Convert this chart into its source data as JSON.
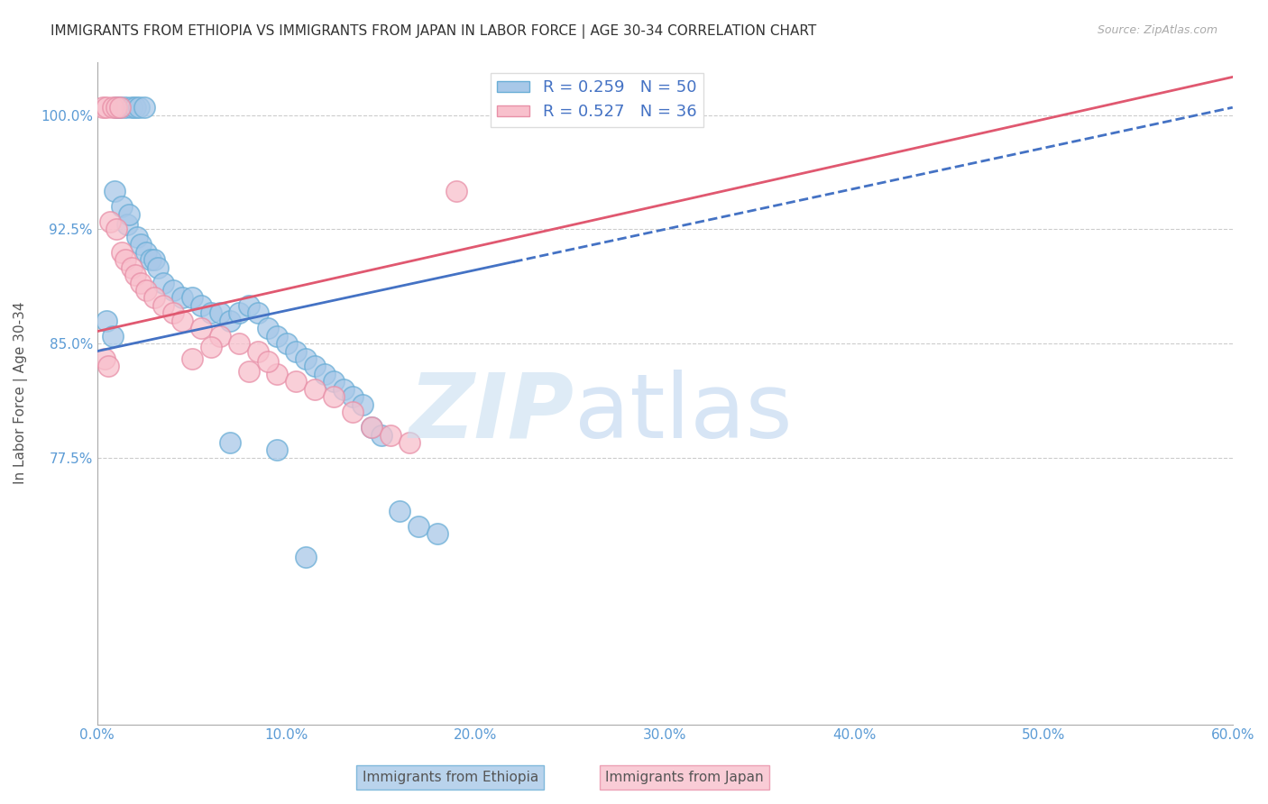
{
  "title": "IMMIGRANTS FROM ETHIOPIA VS IMMIGRANTS FROM JAPAN IN LABOR FORCE | AGE 30-34 CORRELATION CHART",
  "source": "Source: ZipAtlas.com",
  "ylabel": "In Labor Force | Age 30-34",
  "x_tick_labels": [
    "0.0%",
    "10.0%",
    "20.0%",
    "30.0%",
    "40.0%",
    "50.0%",
    "60.0%"
  ],
  "x_tick_values": [
    0.0,
    10.0,
    20.0,
    30.0,
    40.0,
    50.0,
    60.0
  ],
  "y_tick_labels": [
    "77.5%",
    "85.0%",
    "92.5%",
    "100.0%"
  ],
  "y_tick_values": [
    77.5,
    85.0,
    92.5,
    100.0
  ],
  "xlim": [
    0.0,
    60.0
  ],
  "ylim": [
    60.0,
    103.5
  ],
  "ethiopia_scatter": [
    [
      0.5,
      86.5
    ],
    [
      0.8,
      85.5
    ],
    [
      1.0,
      100.5
    ],
    [
      1.1,
      100.5
    ],
    [
      1.2,
      100.5
    ],
    [
      1.5,
      100.5
    ],
    [
      1.8,
      100.5
    ],
    [
      2.0,
      100.5
    ],
    [
      2.2,
      100.5
    ],
    [
      2.5,
      100.5
    ],
    [
      0.9,
      95.0
    ],
    [
      1.3,
      94.0
    ],
    [
      1.6,
      92.8
    ],
    [
      1.7,
      93.5
    ],
    [
      2.1,
      92.0
    ],
    [
      2.3,
      91.5
    ],
    [
      2.6,
      91.0
    ],
    [
      2.8,
      90.5
    ],
    [
      3.0,
      90.5
    ],
    [
      3.2,
      90.0
    ],
    [
      3.5,
      89.0
    ],
    [
      4.0,
      88.5
    ],
    [
      4.5,
      88.0
    ],
    [
      5.0,
      88.0
    ],
    [
      5.5,
      87.5
    ],
    [
      6.0,
      87.0
    ],
    [
      6.5,
      87.0
    ],
    [
      7.0,
      86.5
    ],
    [
      7.5,
      87.0
    ],
    [
      8.0,
      87.5
    ],
    [
      8.5,
      87.0
    ],
    [
      9.0,
      86.0
    ],
    [
      9.5,
      85.5
    ],
    [
      10.0,
      85.0
    ],
    [
      10.5,
      84.5
    ],
    [
      11.0,
      84.0
    ],
    [
      11.5,
      83.5
    ],
    [
      12.0,
      83.0
    ],
    [
      12.5,
      82.5
    ],
    [
      13.0,
      82.0
    ],
    [
      13.5,
      81.5
    ],
    [
      14.0,
      81.0
    ],
    [
      14.5,
      79.5
    ],
    [
      15.0,
      79.0
    ],
    [
      16.0,
      74.0
    ],
    [
      17.0,
      73.0
    ],
    [
      18.0,
      72.5
    ],
    [
      7.0,
      78.5
    ],
    [
      9.5,
      78.0
    ],
    [
      11.0,
      71.0
    ]
  ],
  "japan_scatter": [
    [
      0.3,
      100.5
    ],
    [
      0.5,
      100.5
    ],
    [
      0.8,
      100.5
    ],
    [
      1.0,
      100.5
    ],
    [
      1.2,
      100.5
    ],
    [
      0.4,
      84.0
    ],
    [
      0.7,
      93.0
    ],
    [
      1.0,
      92.5
    ],
    [
      1.3,
      91.0
    ],
    [
      1.5,
      90.5
    ],
    [
      1.8,
      90.0
    ],
    [
      2.0,
      89.5
    ],
    [
      2.3,
      89.0
    ],
    [
      2.6,
      88.5
    ],
    [
      3.0,
      88.0
    ],
    [
      3.5,
      87.5
    ],
    [
      4.0,
      87.0
    ],
    [
      4.5,
      86.5
    ],
    [
      5.5,
      86.0
    ],
    [
      6.5,
      85.5
    ],
    [
      7.5,
      85.0
    ],
    [
      8.5,
      84.5
    ],
    [
      9.5,
      83.0
    ],
    [
      10.5,
      82.5
    ],
    [
      11.5,
      82.0
    ],
    [
      12.5,
      81.5
    ],
    [
      13.5,
      80.5
    ],
    [
      14.5,
      79.5
    ],
    [
      15.5,
      79.0
    ],
    [
      16.5,
      78.5
    ],
    [
      0.6,
      83.5
    ],
    [
      5.0,
      84.0
    ],
    [
      6.0,
      84.8
    ],
    [
      8.0,
      83.2
    ],
    [
      9.0,
      83.8
    ],
    [
      19.0,
      95.0
    ]
  ],
  "ethiopia_color": "#a8c8e8",
  "ethiopia_edge_color": "#6aaed6",
  "japan_color": "#f8c0cc",
  "japan_edge_color": "#e890a8",
  "regression_ethiopia_color": "#4472c4",
  "regression_japan_color": "#e05870",
  "reg_eth_x0": 0.0,
  "reg_eth_y0": 84.5,
  "reg_eth_x1": 60.0,
  "reg_eth_y1": 100.5,
  "reg_eth_solid_end": 22.0,
  "reg_jpn_x0": 0.0,
  "reg_jpn_y0": 85.8,
  "reg_jpn_x1": 60.0,
  "reg_jpn_y1": 102.5,
  "title_fontsize": 11,
  "tick_label_color": "#5b9bd5"
}
